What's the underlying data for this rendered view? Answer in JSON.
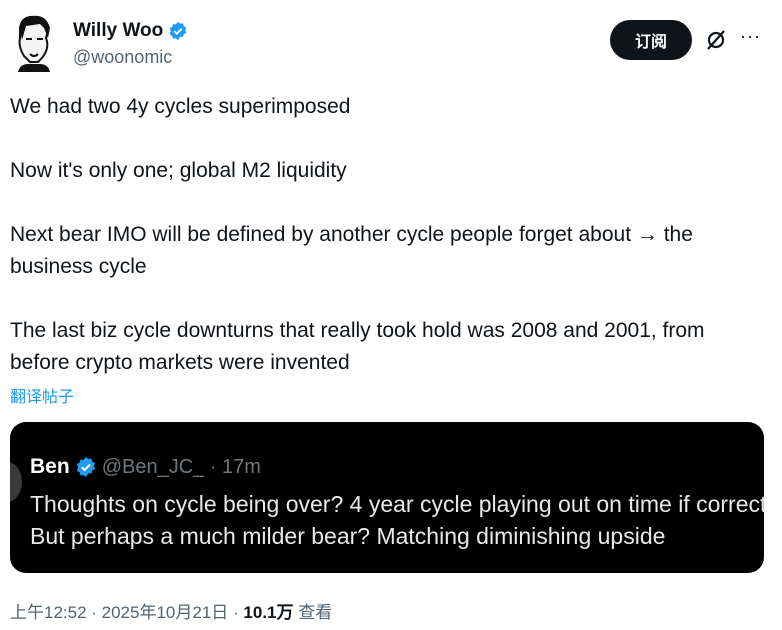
{
  "author": {
    "name": "Willy Woo",
    "handle": "@woonomic",
    "verified": true
  },
  "actions": {
    "subscribe_label": "订阅",
    "grok_icon": "grok-icon",
    "more_icon": "more-icon",
    "more_label": "···"
  },
  "tweet": {
    "paragraphs": [
      "We had two 4y cycles superimposed",
      "Now it's only one; global M2 liquidity",
      "Next bear IMO will be defined by another cycle people forget about → the business cycle",
      "The last biz cycle downturns that really took hold was 2008 and 2001, from before crypto markets were invented"
    ],
    "translate_label": "翻译帖子"
  },
  "quote": {
    "name": "Ben",
    "meta": "@Ben_JC_ · 17m",
    "lines": [
      "Thoughts on cycle being over? 4 year cycle playing out on time if correct.",
      "But perhaps a much milder bear? Matching diminishing upside"
    ]
  },
  "footer": {
    "time": "上午12:52 · 2025年10月21日 · ",
    "views": "10.1万",
    "views_label": " 查看"
  },
  "colors": {
    "verified": "#1d9bf0",
    "link": "#1d9bf0",
    "quote_bg": "#000000"
  }
}
